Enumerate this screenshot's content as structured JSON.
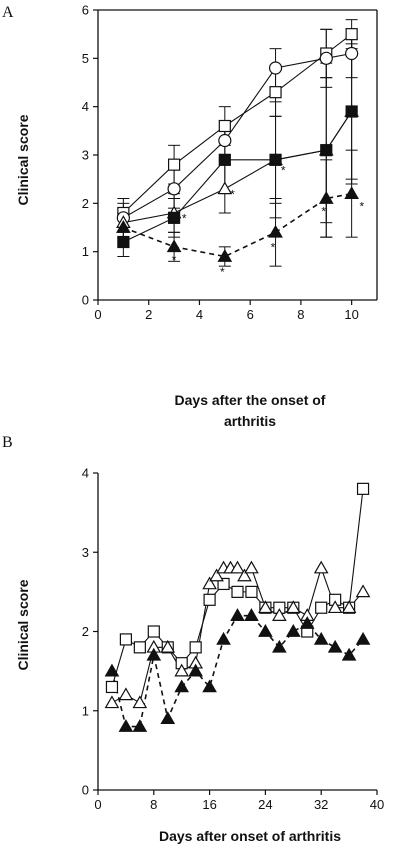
{
  "chart_data": [
    {
      "panel": "A",
      "type": "line",
      "ylabel": "Clinical score",
      "xlabel_lines": [
        "Days after the onset of",
        "arthritis"
      ],
      "xlim": [
        0,
        11
      ],
      "ylim": [
        0,
        6
      ],
      "x_ticks": [
        0,
        2,
        4,
        6,
        8,
        10
      ],
      "y_ticks": [
        0,
        1,
        2,
        3,
        4,
        5,
        6
      ],
      "grid": false,
      "series": [
        {
          "marker": "open-square",
          "dashed": false,
          "x": [
            1,
            3,
            5,
            7,
            9,
            10
          ],
          "y": [
            1.8,
            2.8,
            3.6,
            4.3,
            5.1,
            5.5
          ],
          "err": [
            0.3,
            0.4,
            0.4,
            0.5,
            0.5,
            0.3
          ]
        },
        {
          "marker": "open-circle",
          "dashed": false,
          "x": [
            1,
            3,
            5,
            7,
            9,
            10
          ],
          "y": [
            1.7,
            2.3,
            3.3,
            4.8,
            5.0,
            5.1
          ],
          "err": [
            0.3,
            0.4,
            0.4,
            0.4,
            0.6,
            0.5
          ]
        },
        {
          "marker": "open-triangle",
          "dashed": false,
          "x": [
            1,
            3,
            5,
            7,
            9,
            10
          ],
          "y": [
            1.6,
            1.8,
            2.3,
            2.9,
            3.1,
            3.9
          ],
          "err": [
            0.3,
            0.4,
            0.5,
            1.2,
            1.8,
            1.5
          ]
        },
        {
          "marker": "filled-square",
          "dashed": false,
          "x": [
            1,
            3,
            5,
            7,
            9,
            10
          ],
          "y": [
            1.2,
            1.7,
            2.9,
            2.9,
            3.1,
            3.9
          ],
          "err": [
            0.3,
            0.4,
            0.7,
            0.9,
            1.5,
            1.4
          ]
        },
        {
          "marker": "filled-triangle",
          "dashed": true,
          "x": [
            1,
            3,
            5,
            7,
            9,
            10
          ],
          "y": [
            1.5,
            1.1,
            0.9,
            1.4,
            2.1,
            2.2
          ],
          "err": [
            0.3,
            0.3,
            0.2,
            0.7,
            0.8,
            0.9
          ]
        }
      ],
      "annotations": [
        {
          "text": "*",
          "x": 3.4,
          "y": 1.6
        },
        {
          "text": "*",
          "x": 3.0,
          "y": 0.75
        },
        {
          "text": "*",
          "x": 5.3,
          "y": 2.1
        },
        {
          "text": "*",
          "x": 4.9,
          "y": 0.5
        },
        {
          "text": "*",
          "x": 7.3,
          "y": 2.6
        },
        {
          "text": "*",
          "x": 6.9,
          "y": 1.0
        },
        {
          "text": "*",
          "x": 8.9,
          "y": 2.95
        },
        {
          "text": "*",
          "x": 8.9,
          "y": 1.75
        },
        {
          "text": "*",
          "x": 10.4,
          "y": 1.85
        }
      ]
    },
    {
      "panel": "B",
      "type": "line",
      "ylabel": "Clinical score",
      "xlabel": "Days after onset of arthritis",
      "xlim": [
        0,
        40
      ],
      "ylim": [
        0,
        4
      ],
      "x_ticks": [
        0,
        8,
        16,
        24,
        32,
        40
      ],
      "y_ticks": [
        0,
        1,
        2,
        3,
        4
      ],
      "grid": false,
      "series": [
        {
          "marker": "open-square",
          "dashed": false,
          "x": [
            2,
            4,
            6,
            8,
            10,
            12,
            14,
            16,
            18,
            20,
            22,
            24,
            26,
            28,
            30,
            32,
            34,
            36,
            38
          ],
          "y": [
            1.3,
            1.9,
            1.8,
            2.0,
            1.8,
            1.6,
            1.8,
            2.4,
            2.6,
            2.5,
            2.5,
            2.3,
            2.3,
            2.3,
            2.0,
            2.3,
            2.4,
            2.3,
            3.8
          ]
        },
        {
          "marker": "open-triangle",
          "dashed": false,
          "x": [
            2,
            4,
            6,
            8,
            10,
            12,
            14,
            16,
            17,
            18,
            19,
            20,
            21,
            22,
            24,
            26,
            28,
            30,
            32,
            34,
            36,
            38
          ],
          "y": [
            1.1,
            1.2,
            1.1,
            1.8,
            1.8,
            1.5,
            1.6,
            2.6,
            2.7,
            2.8,
            2.8,
            2.8,
            2.7,
            2.8,
            2.3,
            2.2,
            2.3,
            2.2,
            2.8,
            2.3,
            2.3,
            2.5
          ]
        },
        {
          "marker": "filled-triangle",
          "dashed": true,
          "x": [
            2,
            4,
            6,
            8,
            10,
            12,
            14,
            16,
            18,
            20,
            22,
            24,
            26,
            28,
            30,
            32,
            34,
            36,
            38
          ],
          "y": [
            1.5,
            0.8,
            0.8,
            1.7,
            0.9,
            1.3,
            1.5,
            1.3,
            1.9,
            2.2,
            2.2,
            2.0,
            1.8,
            2.0,
            2.1,
            1.9,
            1.8,
            1.7,
            1.9
          ]
        }
      ]
    }
  ]
}
